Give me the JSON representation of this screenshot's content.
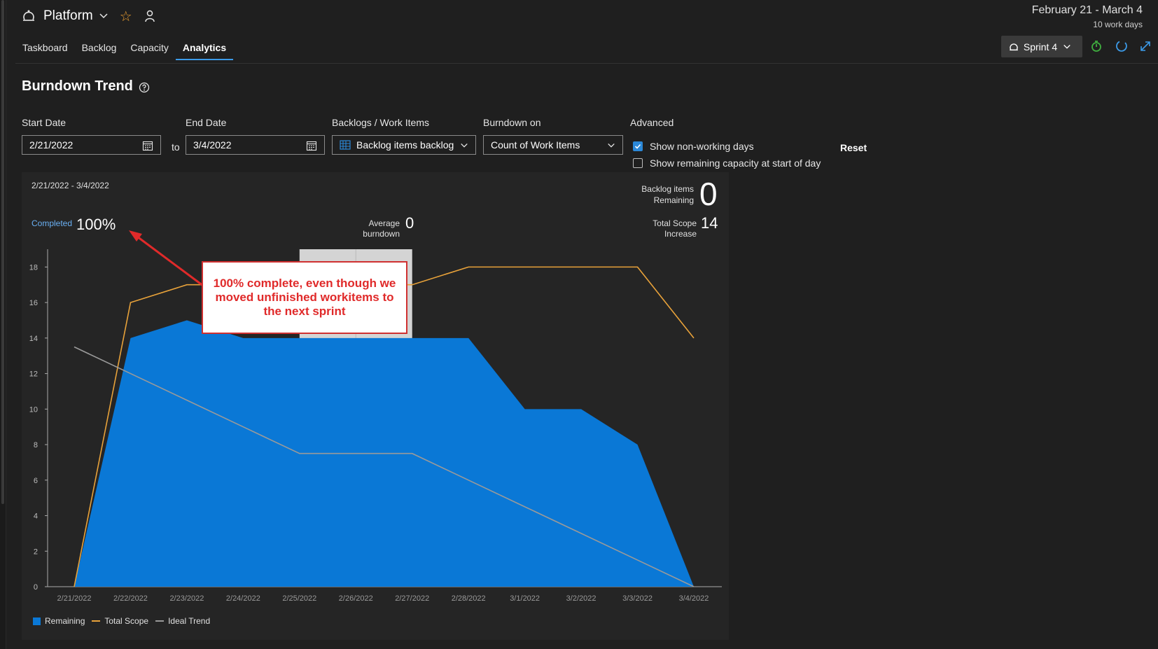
{
  "header": {
    "project_name": "Platform",
    "date_range": "February 21 - March 4",
    "work_days": "10 work days"
  },
  "tabs": [
    "Taskboard",
    "Backlog",
    "Capacity",
    "Analytics"
  ],
  "active_tab": "Analytics",
  "sprint_selector": {
    "label": "Sprint 4"
  },
  "page": {
    "title": "Burndown Trend"
  },
  "filters": {
    "start_date": {
      "label": "Start Date",
      "value": "2/21/2022"
    },
    "to_label": "to",
    "end_date": {
      "label": "End Date",
      "value": "3/4/2022"
    },
    "backlogs": {
      "label": "Backlogs / Work Items",
      "value": "Backlog items backlog"
    },
    "burndown_on": {
      "label": "Burndown on",
      "value": "Count of Work Items"
    },
    "advanced": {
      "label": "Advanced",
      "show_non_working": {
        "label": "Show non-working days",
        "checked": true
      },
      "show_remaining_capacity": {
        "label": "Show remaining capacity at start of day",
        "checked": false
      }
    },
    "reset_label": "Reset"
  },
  "panel": {
    "range": "2/21/2022 - 3/4/2022",
    "completed_label": "Completed",
    "completed_value": "100%",
    "avg_burndown_label_1": "Average",
    "avg_burndown_label_2": "burndown",
    "avg_burndown_value": "0",
    "backlog_remaining_label_1": "Backlog items",
    "backlog_remaining_label_2": "Remaining",
    "backlog_remaining_value": "0",
    "total_scope_label_1": "Total Scope",
    "total_scope_label_2": "Increase",
    "total_scope_value": "14"
  },
  "annotation": "100% complete, even though we moved unfinished workitems to the next sprint",
  "colors": {
    "remaining": "#0a78d6",
    "total_scope": "#e8a23a",
    "ideal_trend": "#9a9a9a",
    "accent": "#3c9be8",
    "annotation": "#e02a2a"
  },
  "chart_data": {
    "type": "area",
    "title": "",
    "xlabel": "",
    "ylabel": "",
    "x": [
      "2/21/2022",
      "2/22/2022",
      "2/23/2022",
      "2/24/2022",
      "2/25/2022",
      "2/26/2022",
      "2/27/2022",
      "2/28/2022",
      "3/1/2022",
      "3/2/2022",
      "3/3/2022",
      "3/4/2022"
    ],
    "yticks": [
      0,
      2,
      4,
      6,
      8,
      10,
      12,
      14,
      16,
      18
    ],
    "ylim": [
      0,
      19
    ],
    "series": [
      {
        "name": "Remaining",
        "kind": "area",
        "color": "#0a78d6",
        "values": [
          0,
          14,
          15,
          14,
          14,
          14,
          14,
          14,
          10,
          10,
          8,
          0
        ]
      },
      {
        "name": "Total Scope",
        "kind": "line",
        "color": "#e8a23a",
        "values": [
          0,
          16,
          17,
          17,
          17,
          17,
          17,
          18,
          18,
          18,
          18,
          14
        ]
      },
      {
        "name": "Ideal Trend",
        "kind": "line",
        "color": "#9a9a9a",
        "values": [
          13.5,
          12,
          10.5,
          9,
          7.5,
          7.5,
          7.5,
          6,
          4.5,
          3,
          1.5,
          0
        ]
      }
    ],
    "shaded_range": [
      "2/25/2022",
      "2/26/2022"
    ],
    "legend": "bottom-left"
  }
}
